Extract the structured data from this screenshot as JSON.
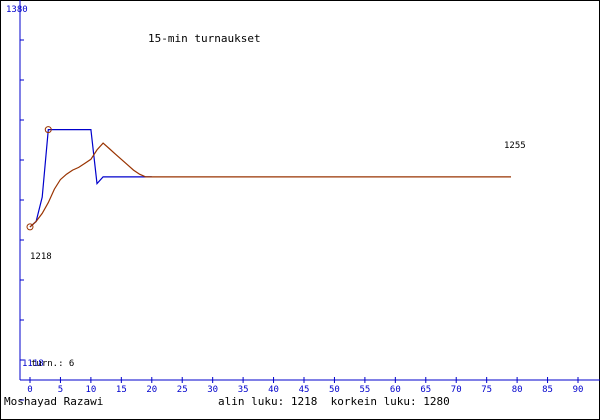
{
  "chart_data": {
    "type": "line",
    "title": "15-min turnaukset",
    "xlabel": "",
    "ylabel": "",
    "xlim": [
      0,
      90
    ],
    "ylim": [
      1118,
      1380
    ],
    "x_ticks": [
      0,
      5,
      10,
      15,
      20,
      25,
      30,
      35,
      40,
      45,
      50,
      55,
      60,
      65,
      70,
      75,
      80,
      85,
      90
    ],
    "y_top_label": "1380",
    "y_bottom_label": "1118",
    "turn_label": "turn.: 6",
    "annotations": {
      "start_value": "1218",
      "end_value": "1255"
    },
    "grid": false,
    "series": [
      {
        "color": "#0000cc",
        "x": [
          0,
          1,
          2,
          3,
          4,
          5,
          6,
          7,
          8,
          9,
          10,
          11,
          12,
          13,
          14,
          15,
          16,
          17,
          18,
          19,
          20
        ],
        "y": [
          1218,
          1222,
          1240,
          1290,
          1290,
          1290,
          1290,
          1290,
          1290,
          1290,
          1290,
          1250,
          1255,
          1255,
          1255,
          1255,
          1255,
          1255,
          1255,
          1255,
          1255
        ]
      },
      {
        "color": "#993300",
        "x": [
          0,
          1,
          2,
          3,
          4,
          5,
          6,
          7,
          8,
          9,
          10,
          11,
          12,
          13,
          14,
          15,
          16,
          17,
          18,
          19,
          20,
          79
        ],
        "y": [
          1218,
          1222,
          1228,
          1236,
          1246,
          1253,
          1257,
          1260,
          1262,
          1265,
          1268,
          1275,
          1280,
          1276,
          1272,
          1268,
          1264,
          1260,
          1257,
          1255,
          1255,
          1255
        ]
      }
    ],
    "markers": [
      {
        "x": 0,
        "y": 1218,
        "color": "#993300"
      },
      {
        "x": 3,
        "y": 1290,
        "color": "#993300"
      }
    ]
  },
  "footer": {
    "author": "Moshayad Razawi",
    "stats": "alin luku: 1218  korkein luku: 1280"
  }
}
